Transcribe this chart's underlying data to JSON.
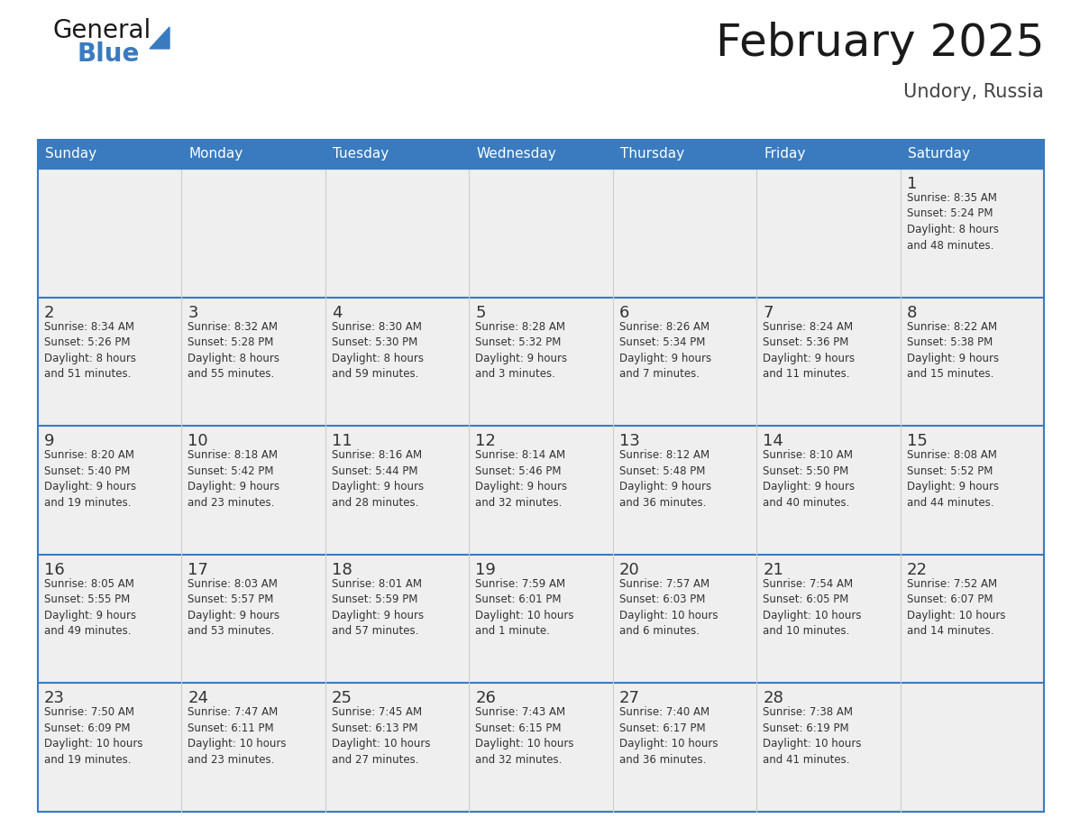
{
  "title": "February 2025",
  "subtitle": "Undory, Russia",
  "header_color": "#3a7bbf",
  "header_text_color": "#ffffff",
  "cell_bg_color": "#efefef",
  "border_color": "#3a7bbf",
  "text_color": "#333333",
  "day_names": [
    "Sunday",
    "Monday",
    "Tuesday",
    "Wednesday",
    "Thursday",
    "Friday",
    "Saturday"
  ],
  "days": [
    {
      "day": 1,
      "col": 6,
      "row": 0,
      "sunrise": "8:35 AM",
      "sunset": "5:24 PM",
      "daylight": "8 hours\nand 48 minutes."
    },
    {
      "day": 2,
      "col": 0,
      "row": 1,
      "sunrise": "8:34 AM",
      "sunset": "5:26 PM",
      "daylight": "8 hours\nand 51 minutes."
    },
    {
      "day": 3,
      "col": 1,
      "row": 1,
      "sunrise": "8:32 AM",
      "sunset": "5:28 PM",
      "daylight": "8 hours\nand 55 minutes."
    },
    {
      "day": 4,
      "col": 2,
      "row": 1,
      "sunrise": "8:30 AM",
      "sunset": "5:30 PM",
      "daylight": "8 hours\nand 59 minutes."
    },
    {
      "day": 5,
      "col": 3,
      "row": 1,
      "sunrise": "8:28 AM",
      "sunset": "5:32 PM",
      "daylight": "9 hours\nand 3 minutes."
    },
    {
      "day": 6,
      "col": 4,
      "row": 1,
      "sunrise": "8:26 AM",
      "sunset": "5:34 PM",
      "daylight": "9 hours\nand 7 minutes."
    },
    {
      "day": 7,
      "col": 5,
      "row": 1,
      "sunrise": "8:24 AM",
      "sunset": "5:36 PM",
      "daylight": "9 hours\nand 11 minutes."
    },
    {
      "day": 8,
      "col": 6,
      "row": 1,
      "sunrise": "8:22 AM",
      "sunset": "5:38 PM",
      "daylight": "9 hours\nand 15 minutes."
    },
    {
      "day": 9,
      "col": 0,
      "row": 2,
      "sunrise": "8:20 AM",
      "sunset": "5:40 PM",
      "daylight": "9 hours\nand 19 minutes."
    },
    {
      "day": 10,
      "col": 1,
      "row": 2,
      "sunrise": "8:18 AM",
      "sunset": "5:42 PM",
      "daylight": "9 hours\nand 23 minutes."
    },
    {
      "day": 11,
      "col": 2,
      "row": 2,
      "sunrise": "8:16 AM",
      "sunset": "5:44 PM",
      "daylight": "9 hours\nand 28 minutes."
    },
    {
      "day": 12,
      "col": 3,
      "row": 2,
      "sunrise": "8:14 AM",
      "sunset": "5:46 PM",
      "daylight": "9 hours\nand 32 minutes."
    },
    {
      "day": 13,
      "col": 4,
      "row": 2,
      "sunrise": "8:12 AM",
      "sunset": "5:48 PM",
      "daylight": "9 hours\nand 36 minutes."
    },
    {
      "day": 14,
      "col": 5,
      "row": 2,
      "sunrise": "8:10 AM",
      "sunset": "5:50 PM",
      "daylight": "9 hours\nand 40 minutes."
    },
    {
      "day": 15,
      "col": 6,
      "row": 2,
      "sunrise": "8:08 AM",
      "sunset": "5:52 PM",
      "daylight": "9 hours\nand 44 minutes."
    },
    {
      "day": 16,
      "col": 0,
      "row": 3,
      "sunrise": "8:05 AM",
      "sunset": "5:55 PM",
      "daylight": "9 hours\nand 49 minutes."
    },
    {
      "day": 17,
      "col": 1,
      "row": 3,
      "sunrise": "8:03 AM",
      "sunset": "5:57 PM",
      "daylight": "9 hours\nand 53 minutes."
    },
    {
      "day": 18,
      "col": 2,
      "row": 3,
      "sunrise": "8:01 AM",
      "sunset": "5:59 PM",
      "daylight": "9 hours\nand 57 minutes."
    },
    {
      "day": 19,
      "col": 3,
      "row": 3,
      "sunrise": "7:59 AM",
      "sunset": "6:01 PM",
      "daylight": "10 hours\nand 1 minute."
    },
    {
      "day": 20,
      "col": 4,
      "row": 3,
      "sunrise": "7:57 AM",
      "sunset": "6:03 PM",
      "daylight": "10 hours\nand 6 minutes."
    },
    {
      "day": 21,
      "col": 5,
      "row": 3,
      "sunrise": "7:54 AM",
      "sunset": "6:05 PM",
      "daylight": "10 hours\nand 10 minutes."
    },
    {
      "day": 22,
      "col": 6,
      "row": 3,
      "sunrise": "7:52 AM",
      "sunset": "6:07 PM",
      "daylight": "10 hours\nand 14 minutes."
    },
    {
      "day": 23,
      "col": 0,
      "row": 4,
      "sunrise": "7:50 AM",
      "sunset": "6:09 PM",
      "daylight": "10 hours\nand 19 minutes."
    },
    {
      "day": 24,
      "col": 1,
      "row": 4,
      "sunrise": "7:47 AM",
      "sunset": "6:11 PM",
      "daylight": "10 hours\nand 23 minutes."
    },
    {
      "day": 25,
      "col": 2,
      "row": 4,
      "sunrise": "7:45 AM",
      "sunset": "6:13 PM",
      "daylight": "10 hours\nand 27 minutes."
    },
    {
      "day": 26,
      "col": 3,
      "row": 4,
      "sunrise": "7:43 AM",
      "sunset": "6:15 PM",
      "daylight": "10 hours\nand 32 minutes."
    },
    {
      "day": 27,
      "col": 4,
      "row": 4,
      "sunrise": "7:40 AM",
      "sunset": "6:17 PM",
      "daylight": "10 hours\nand 36 minutes."
    },
    {
      "day": 28,
      "col": 5,
      "row": 4,
      "sunrise": "7:38 AM",
      "sunset": "6:19 PM",
      "daylight": "10 hours\nand 41 minutes."
    }
  ],
  "num_rows": 5,
  "background_color": "#ffffff",
  "title_fontsize": 36,
  "subtitle_fontsize": 15,
  "dayname_fontsize": 11,
  "daynum_fontsize": 13,
  "info_fontsize": 8.5
}
